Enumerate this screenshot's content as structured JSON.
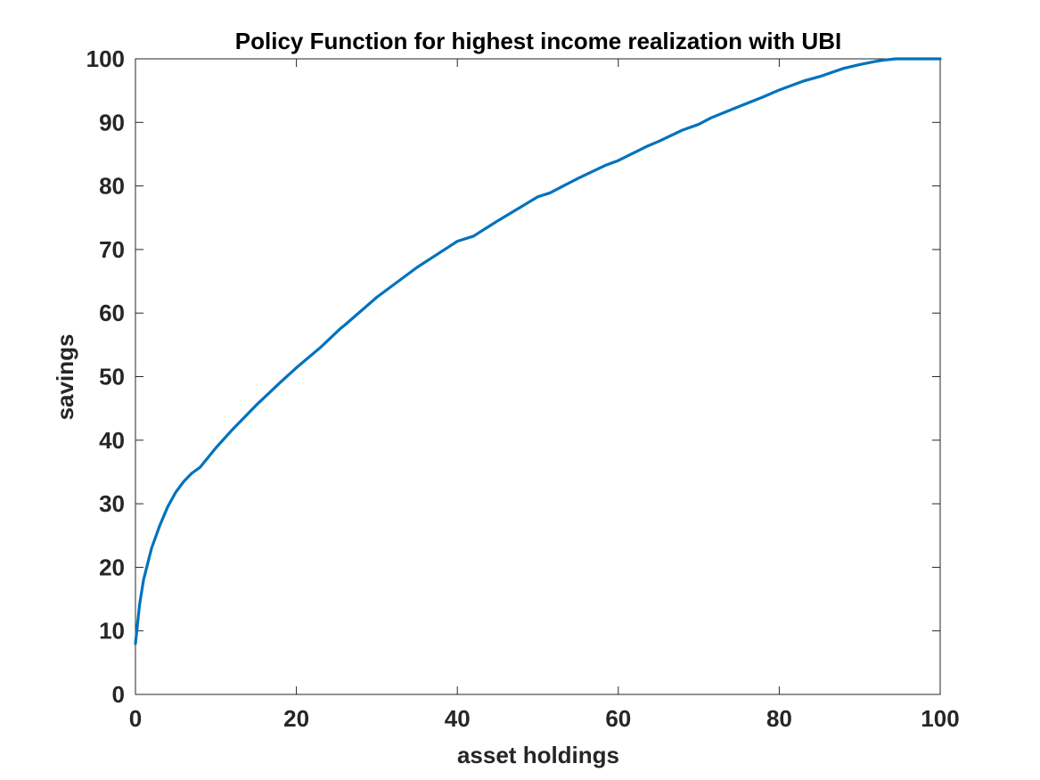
{
  "chart_data": {
    "type": "line",
    "title": "Policy Function for highest income realization with UBI",
    "xlabel": "asset holdings",
    "ylabel": "savings",
    "xlim": [
      0,
      100
    ],
    "ylim": [
      0,
      100
    ],
    "xticks": [
      "0",
      "20",
      "40",
      "60",
      "80",
      "100"
    ],
    "yticks": [
      "0",
      "10",
      "20",
      "30",
      "40",
      "50",
      "60",
      "70",
      "80",
      "90",
      "100"
    ],
    "grid": false,
    "box": true,
    "series": [
      {
        "color": "#0072BD",
        "x": [
          0,
          0.5,
          1,
          2,
          3,
          4,
          5,
          6,
          7,
          8,
          10,
          12,
          15,
          18,
          20,
          23,
          25.5,
          26,
          30,
          35,
          40,
          42,
          45,
          50,
          51.5,
          55,
          58.5,
          60,
          63.5,
          65,
          68,
          70,
          71.5,
          75,
          78,
          80,
          83,
          85,
          88,
          90,
          92,
          93,
          94.5,
          95,
          97,
          100
        ],
        "y": [
          8,
          14,
          18,
          23,
          26.5,
          29.5,
          31.8,
          33.5,
          34.8,
          35.7,
          38.8,
          41.6,
          45.5,
          49.1,
          51.4,
          54.6,
          57.6,
          58.1,
          62.5,
          67.2,
          71.3,
          72.1,
          74.5,
          78.3,
          78.9,
          81.2,
          83.3,
          84,
          86.2,
          87,
          88.8,
          89.7,
          90.7,
          92.5,
          94,
          95.1,
          96.5,
          97.2,
          98.5,
          99.1,
          99.6,
          99.8,
          100,
          100,
          100,
          100
        ]
      }
    ]
  }
}
